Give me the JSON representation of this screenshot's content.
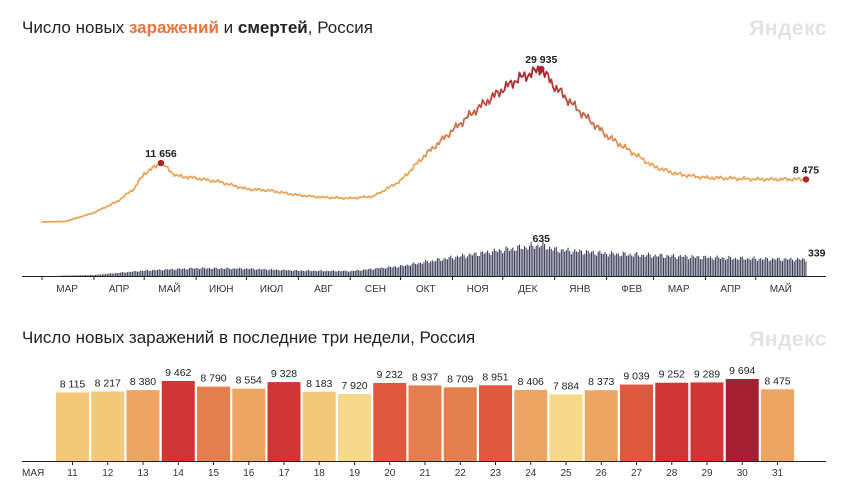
{
  "top_chart": {
    "title_pre": "Число новых ",
    "title_infections": "заражений",
    "title_mid": " и ",
    "title_deaths": "смертей",
    "title_post": ", Россия",
    "logo": "Яндекс"
  },
  "bottom_chart": {
    "title": "Число новых заражений в последние три недели, Россия",
    "logo": "Яндекс"
  },
  "colors": {
    "infections_low": "#e8a75e",
    "infections_high": "#a8252f",
    "deaths_bars": "#3c3f5a",
    "axis": "#222222",
    "weekend_day": "#d9392b",
    "bar_scale": [
      "#f7d98b",
      "#f4c77a",
      "#eea564",
      "#e67f4e",
      "#df5840",
      "#cf3634",
      "#a41f32"
    ]
  },
  "chart_data": [
    {
      "type": "line",
      "title": "Число новых заражений и смертей, Россия",
      "x_ticks": [
        "МАР",
        "АПР",
        "МАЙ",
        "ИЮН",
        "ИЮЛ",
        "АВГ",
        "СЕН",
        "ОКТ",
        "НОЯ",
        "ДЕК",
        "ЯНВ",
        "ФЕВ",
        "МАР",
        "АПР",
        "МАЙ"
      ],
      "series": [
        {
          "name": "заражений",
          "x": [
            "2020-03-01",
            "2020-03-15",
            "2020-04-01",
            "2020-04-15",
            "2020-04-25",
            "2020-05-01",
            "2020-05-11",
            "2020-05-20",
            "2020-06-01",
            "2020-06-15",
            "2020-07-01",
            "2020-07-15",
            "2020-08-01",
            "2020-08-15",
            "2020-09-01",
            "2020-09-15",
            "2020-10-01",
            "2020-10-15",
            "2020-11-01",
            "2020-11-15",
            "2020-12-01",
            "2020-12-10",
            "2020-12-24",
            "2021-01-01",
            "2021-01-15",
            "2021-02-01",
            "2021-02-15",
            "2021-03-01",
            "2021-03-15",
            "2021-04-01",
            "2021-04-15",
            "2021-05-01",
            "2021-05-15",
            "2021-05-31"
          ],
          "values": [
            200,
            300,
            2000,
            4200,
            6700,
            9600,
            11656,
            9200,
            8700,
            8000,
            6600,
            6300,
            5400,
            5000,
            4800,
            5200,
            8200,
            13000,
            18000,
            22000,
            26000,
            28000,
            29935,
            26500,
            22000,
            17000,
            14000,
            11000,
            9500,
            8800,
            8700,
            8500,
            8500,
            8475
          ],
          "labels": [
            {
              "x": "2020-05-11",
              "text": "11 656"
            },
            {
              "x": "2020-12-24",
              "text": "29 935"
            },
            {
              "x": "2021-05-31",
              "text": "8 475"
            }
          ]
        },
        {
          "name": "смертей",
          "type": "bar",
          "x": [
            "2020-03-01",
            "2020-04-01",
            "2020-05-01",
            "2020-06-01",
            "2020-07-01",
            "2020-08-01",
            "2020-09-01",
            "2020-10-01",
            "2020-11-01",
            "2020-12-01",
            "2020-12-24",
            "2021-01-01",
            "2021-02-01",
            "2021-03-01",
            "2021-04-01",
            "2021-05-01",
            "2021-05-31"
          ],
          "values": [
            0,
            20,
            110,
            160,
            150,
            110,
            100,
            200,
            380,
            530,
            635,
            540,
            460,
            420,
            380,
            350,
            339
          ],
          "labels": [
            {
              "x": "2020-12-24",
              "text": "635"
            },
            {
              "x": "2021-05-31",
              "text": "339"
            }
          ]
        }
      ]
    },
    {
      "type": "bar",
      "title": "Число новых заражений в последние три недели, Россия",
      "month_label": "МАЯ",
      "categories": [
        "11",
        "12",
        "13",
        "14",
        "15",
        "16",
        "17",
        "18",
        "19",
        "20",
        "21",
        "22",
        "23",
        "24",
        "25",
        "26",
        "27",
        "28",
        "29",
        "30",
        "31"
      ],
      "weekend": [
        false,
        false,
        false,
        false,
        true,
        true,
        false,
        false,
        false,
        false,
        false,
        true,
        true,
        false,
        false,
        false,
        false,
        false,
        true,
        true,
        false
      ],
      "values": [
        8115,
        8217,
        8380,
        9462,
        8790,
        8554,
        9328,
        8183,
        7920,
        9232,
        8937,
        8709,
        8951,
        8406,
        7884,
        8373,
        9039,
        9252,
        9289,
        9694,
        8475
      ],
      "value_labels": [
        "8 115",
        "8 217",
        "8 380",
        "9 462",
        "8 790",
        "8 554",
        "9 328",
        "8 183",
        "7 920",
        "9 232",
        "8 937",
        "8 709",
        "8 951",
        "8 406",
        "7 884",
        "8 373",
        "9 039",
        "9 252",
        "9 289",
        "9 694",
        "8 475"
      ]
    }
  ]
}
